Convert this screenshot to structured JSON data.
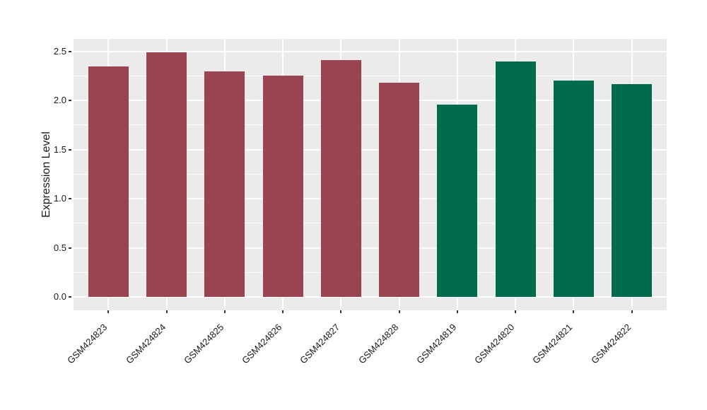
{
  "figure": {
    "background": "#FFFFFF",
    "panel_background": "#EBEBEB",
    "grid_color": "#FFFFFF",
    "tick_color": "#333333",
    "text_color": "#1A1A1A"
  },
  "chart_data": {
    "type": "bar",
    "title": "",
    "xlabel": "",
    "ylabel": "Expression Level",
    "categories": [
      "GSM424823",
      "GSM424824",
      "GSM424825",
      "GSM424826",
      "GSM424827",
      "GSM424828",
      "GSM424819",
      "GSM424820",
      "GSM424821",
      "GSM424822"
    ],
    "values": [
      2.35,
      2.49,
      2.3,
      2.25,
      2.41,
      2.18,
      1.96,
      2.4,
      2.2,
      2.17
    ],
    "bar_colors": [
      "#9A4452",
      "#9A4452",
      "#9A4452",
      "#9A4452",
      "#9A4452",
      "#9A4452",
      "#006B4D",
      "#006B4D",
      "#006B4D",
      "#006B4D"
    ],
    "groups": [
      {
        "name": "maroon-group",
        "color": "#9A4452",
        "categories": [
          "GSM424823",
          "GSM424824",
          "GSM424825",
          "GSM424826",
          "GSM424827",
          "GSM424828"
        ]
      },
      {
        "name": "green-group",
        "color": "#006B4D",
        "categories": [
          "GSM424819",
          "GSM424820",
          "GSM424821",
          "GSM424822"
        ]
      }
    ],
    "yticks": [
      0.0,
      0.5,
      1.0,
      1.5,
      2.0,
      2.5
    ],
    "ytick_labels": [
      "0.0",
      "0.5",
      "1.0",
      "1.5",
      "2.0",
      "2.5"
    ],
    "minor_yticks": [
      0.25,
      0.75,
      1.25,
      1.75,
      2.25
    ],
    "ylim": [
      -0.14,
      2.62
    ],
    "x_tick_rotation_deg": 45,
    "legend": "none",
    "grid": {
      "horizontal": "major+minor",
      "vertical": "major-at-categories"
    }
  }
}
